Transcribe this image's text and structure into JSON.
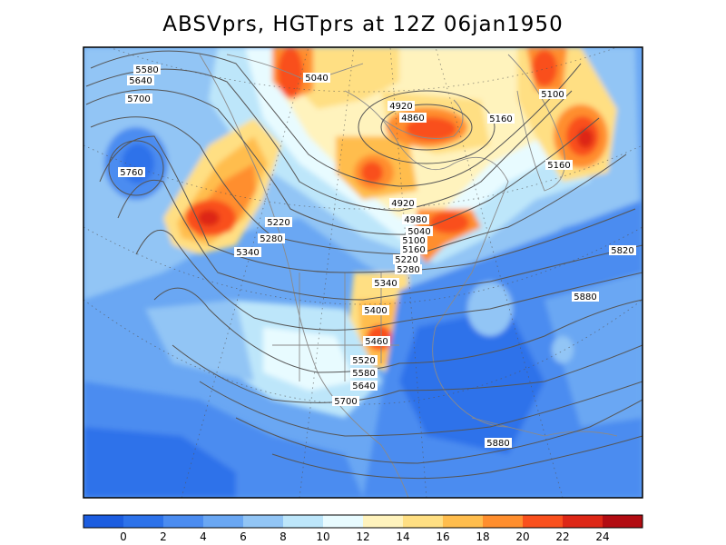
{
  "title": "ABSVprs, HGTprs at 12Z  06jan1950",
  "colorbar": {
    "ticks": [
      "0",
      "2",
      "4",
      "6",
      "8",
      "10",
      "12",
      "14",
      "16",
      "18",
      "20",
      "22",
      "24"
    ],
    "colors": [
      "#1c5de0",
      "#2d72ea",
      "#4b8cf0",
      "#6aa7f3",
      "#92c5f5",
      "#bde6fa",
      "#e8fbff",
      "#fff3bd",
      "#ffdf83",
      "#ffbd4d",
      "#ff8e2e",
      "#f9501d",
      "#dd2716",
      "#b20c12"
    ]
  },
  "contour_labels": [
    "5580",
    "5640",
    "5700",
    "5760",
    "5040",
    "4920",
    "4860",
    "5160",
    "5100",
    "5160",
    "4920",
    "4980",
    "5040",
    "5100",
    "5160",
    "5220",
    "5280",
    "5220",
    "5280",
    "5340",
    "5340",
    "5400",
    "5460",
    "5520",
    "5580",
    "5640",
    "5700",
    "5820",
    "5880",
    "5880"
  ]
}
